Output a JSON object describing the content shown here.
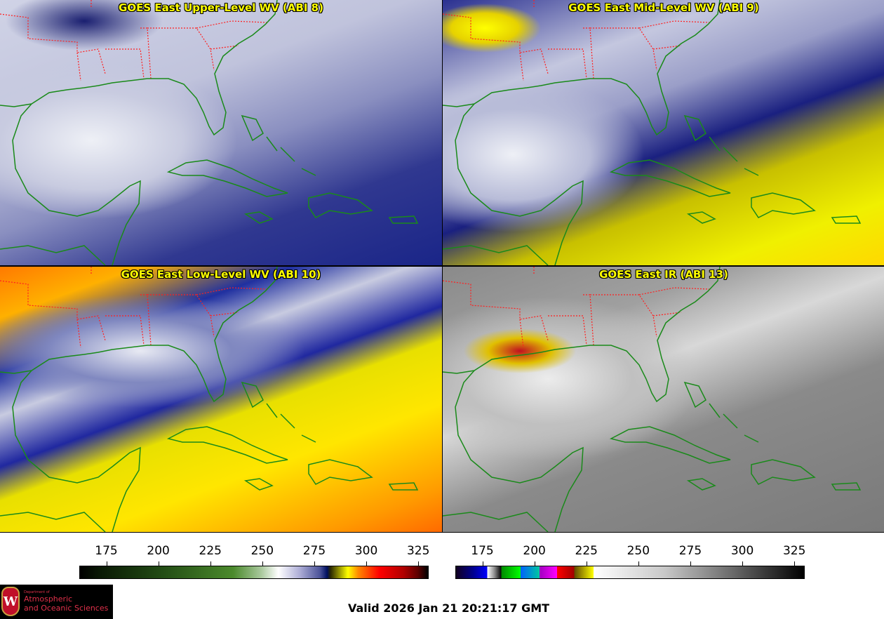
{
  "panels": [
    {
      "title": "GOES East Upper-Level WV (ABI 8)"
    },
    {
      "title": "GOES East Mid-Level WV (ABI 9)"
    },
    {
      "title": "GOES East Low-Level WV (ABI 10)"
    },
    {
      "title": "GOES East IR (ABI 13)"
    }
  ],
  "colorbars": [
    {
      "name": "water-vapor",
      "range": [
        162,
        330
      ],
      "ticks": [
        "175",
        "200",
        "225",
        "250",
        "275",
        "300",
        "325"
      ]
    },
    {
      "name": "infrared",
      "range": [
        162,
        330
      ],
      "ticks": [
        "175",
        "200",
        "225",
        "250",
        "275",
        "300",
        "325"
      ]
    }
  ],
  "valid_time": "Valid 2026 Jan 21 20:21:17 GMT",
  "logo": {
    "line1": "Department of",
    "line2": "Atmospheric",
    "line3": "and Oceanic Sciences",
    "mark": "W"
  },
  "colors": {
    "title": "#ffff00",
    "coastline": "#1a8a1a",
    "borders": "#ff2020"
  }
}
